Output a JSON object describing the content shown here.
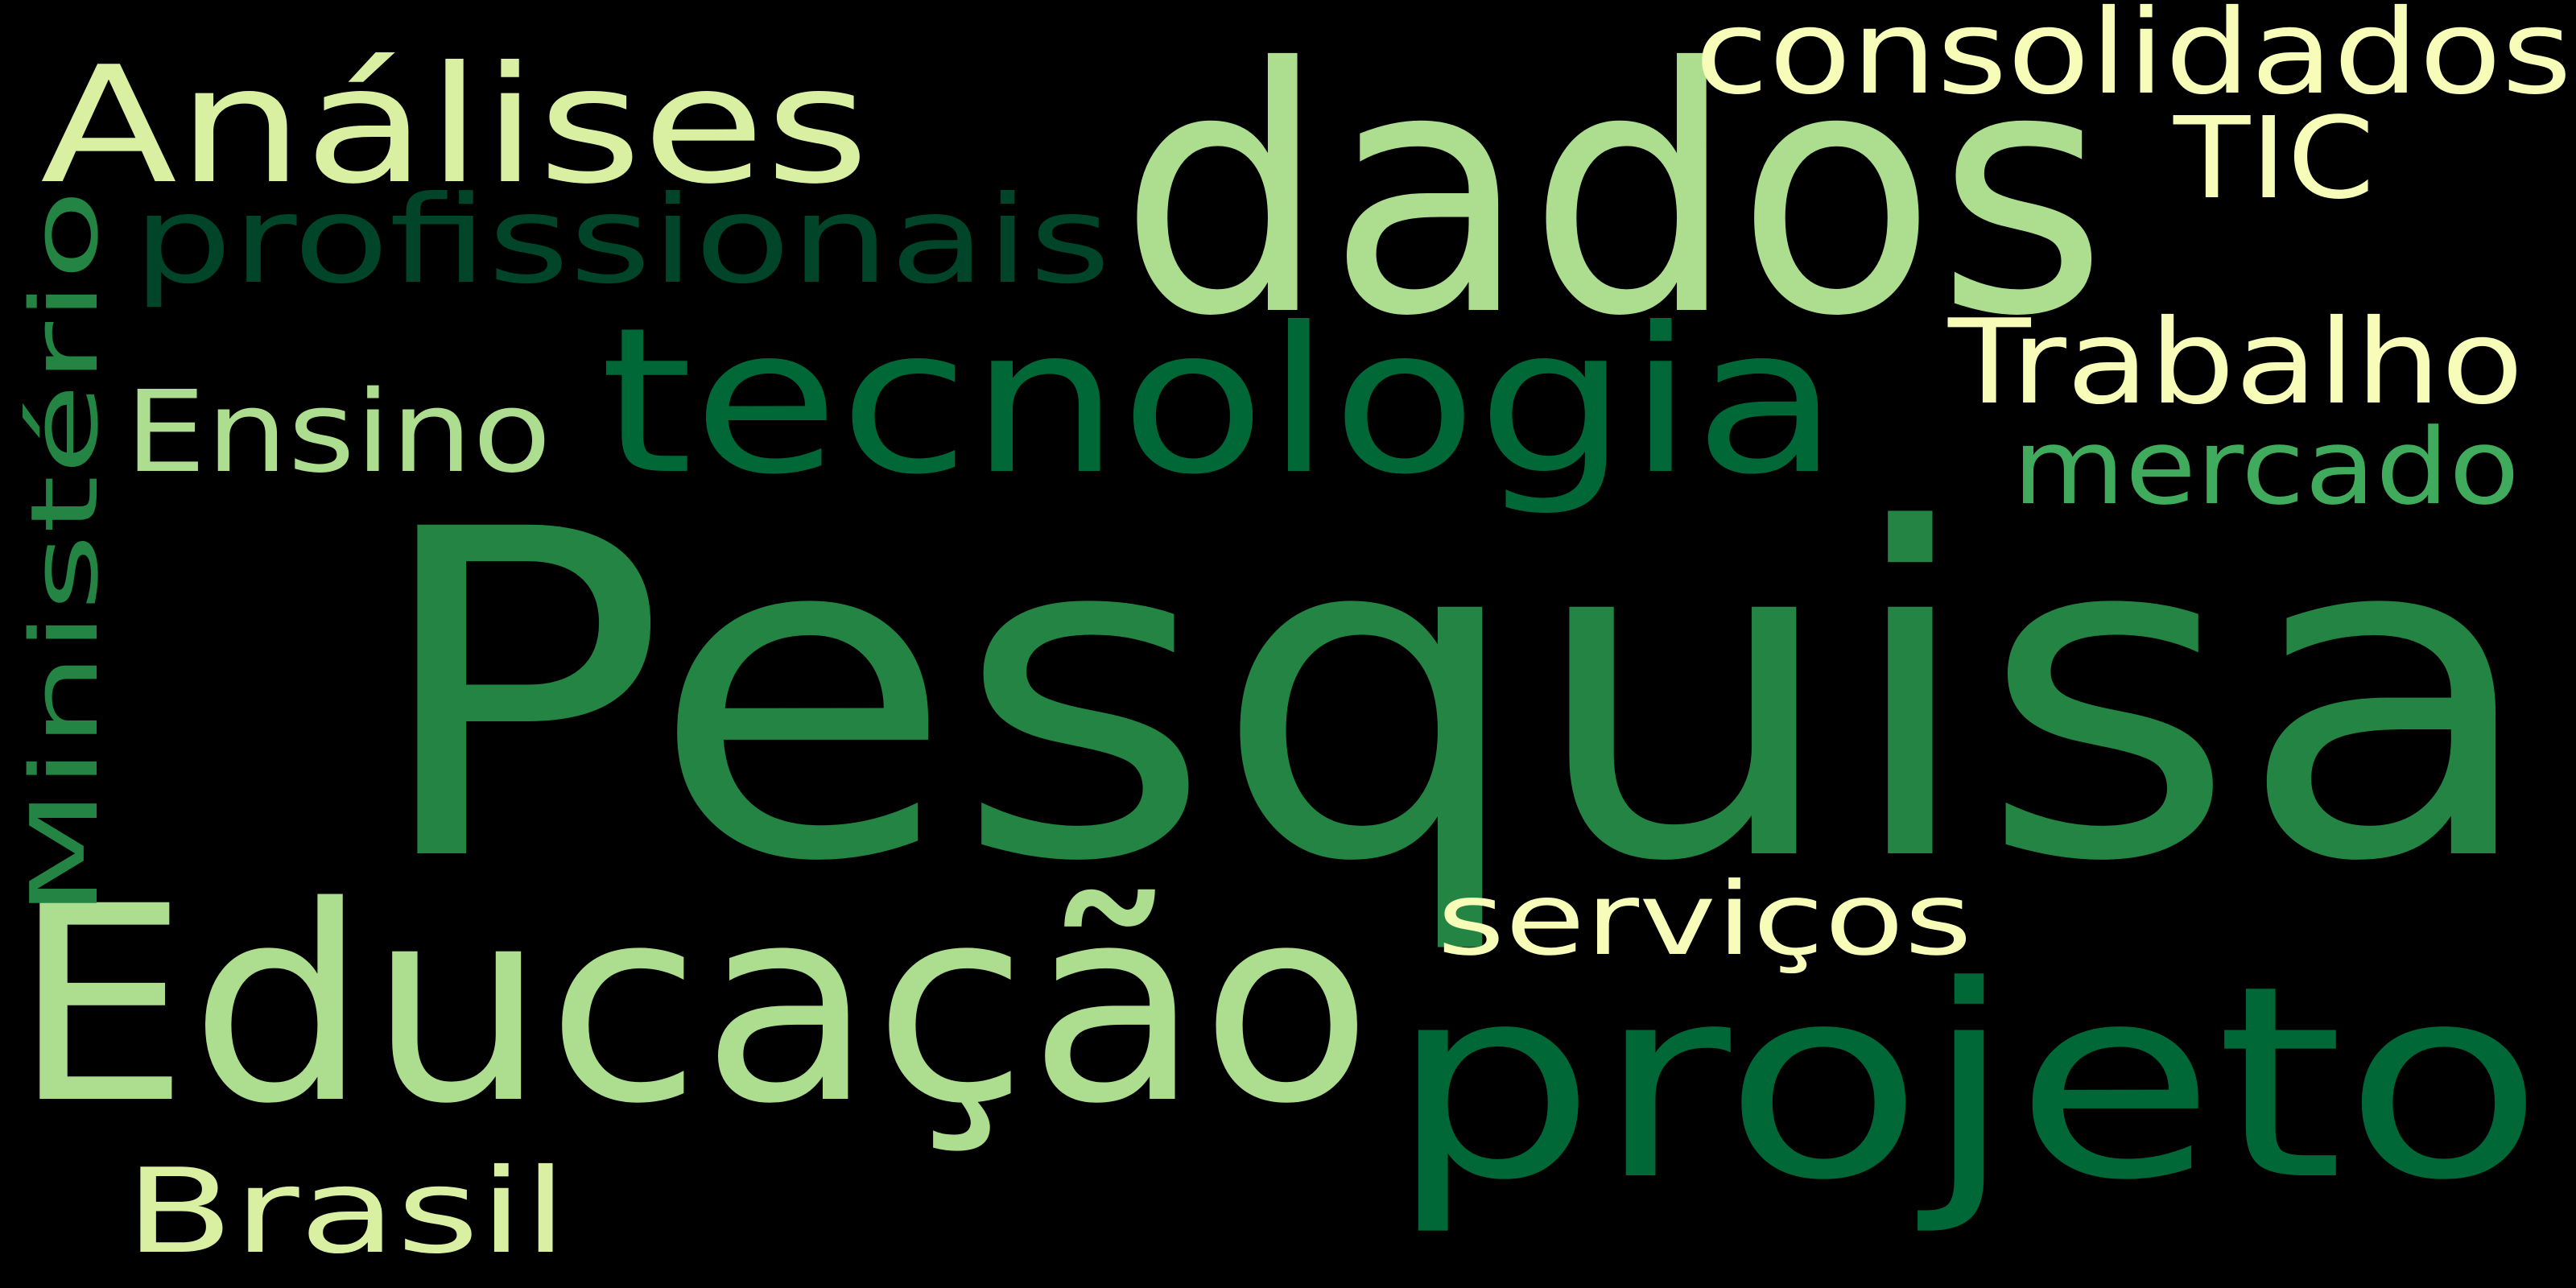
{
  "background": "#000000",
  "palette": {
    "pale_yellow": "#F7FCB9",
    "light_green": "#ADDD8E",
    "mid_green": "#41AB5D",
    "green": "#238443",
    "dark_green": "#006837",
    "deep_green": "#004529"
  },
  "words": [
    {
      "text": "Pesquisa",
      "color": "#238443"
    },
    {
      "text": "dados",
      "color": "#ADDD8E"
    },
    {
      "text": "Educação",
      "color": "#ADDD8E"
    },
    {
      "text": "projeto",
      "color": "#006837"
    },
    {
      "text": "tecnologia",
      "color": "#006837"
    },
    {
      "text": "Análises",
      "color": "#D9F0A3"
    },
    {
      "text": "Ministério",
      "color": "#238443"
    },
    {
      "text": "profissionais",
      "color": "#004529"
    },
    {
      "text": "consolidados",
      "color": "#F7FCB9"
    },
    {
      "text": "Trabalho",
      "color": "#F7FCB9"
    },
    {
      "text": "TIC",
      "color": "#F7FCB9"
    },
    {
      "text": "Ensino",
      "color": "#ADDD8E"
    },
    {
      "text": "mercado",
      "color": "#41AB5D"
    },
    {
      "text": "serviços",
      "color": "#F7FCB9"
    },
    {
      "text": "Brasil",
      "color": "#D9F0A3"
    }
  ]
}
